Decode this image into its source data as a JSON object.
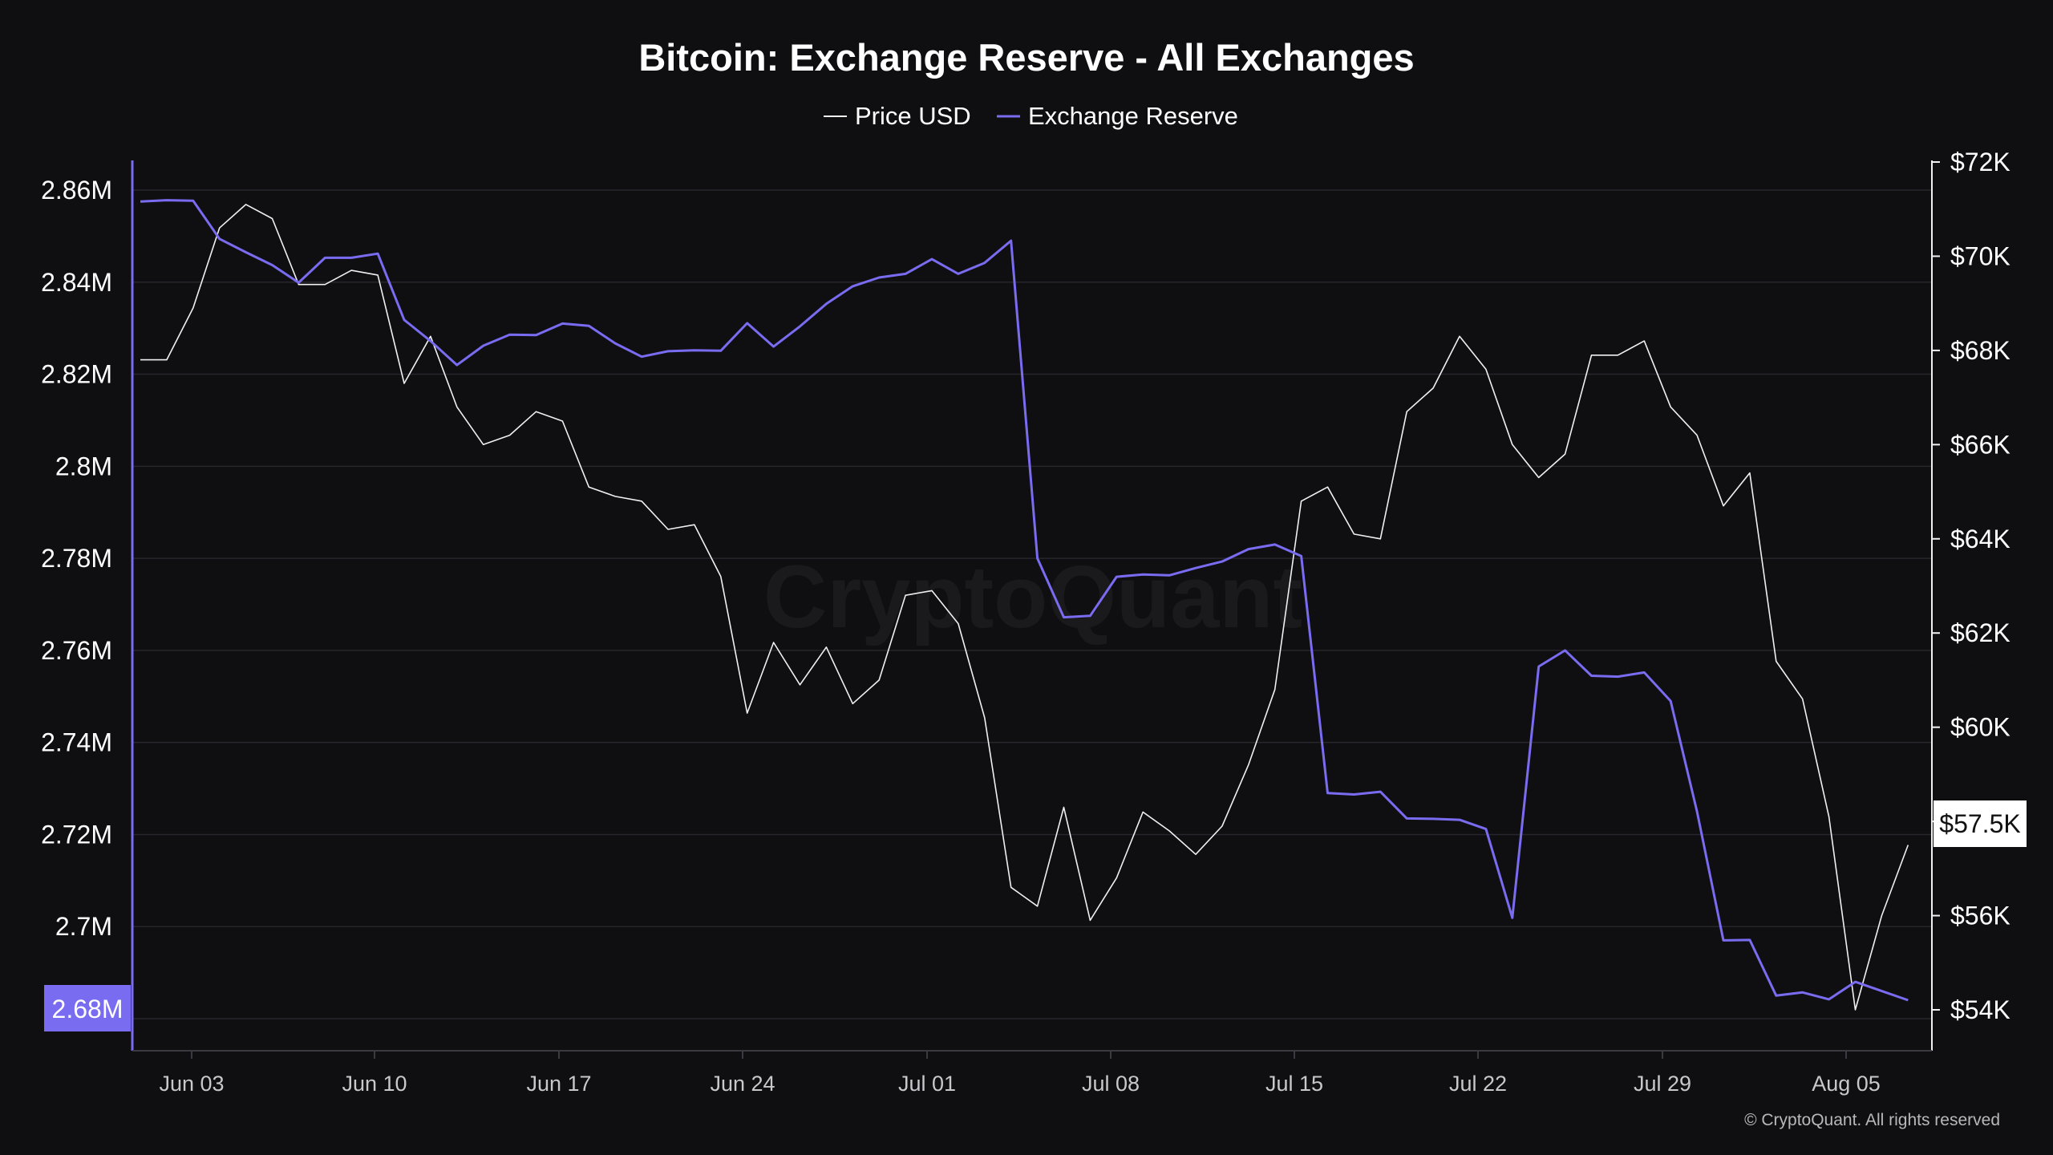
{
  "colors": {
    "background": "#0f0f12",
    "price": "#f0f0f0",
    "reserve": "#7a6cf0",
    "grid": "#26262c"
  },
  "chart_data": {
    "type": "line",
    "title": "Bitcoin: Exchange Reserve - All Exchanges",
    "legend": [
      "Price USD",
      "Exchange Reserve"
    ],
    "legend_position": "top-center",
    "grid": true,
    "x_ticks": [
      "Jun 03",
      "Jun 10",
      "Jun 17",
      "Jun 24",
      "Jul 01",
      "Jul 08",
      "Jul 15",
      "Jul 22",
      "Jul 29",
      "Aug 05"
    ],
    "y_left": {
      "label": "",
      "ticks": [
        "2.86M",
        "2.84M",
        "2.82M",
        "2.8M",
        "2.78M",
        "2.76M",
        "2.74M",
        "2.72M",
        "2.7M"
      ],
      "range": [
        2.68,
        2.86
      ],
      "current_label": "2.68M"
    },
    "y_right": {
      "label": "",
      "ticks": [
        "$72K",
        "$70K",
        "$68K",
        "$66K",
        "$64K",
        "$62K",
        "$60K",
        "$58K",
        "$56K",
        "$54K"
      ],
      "range": [
        54,
        72
      ],
      "current_label": "$57.5K"
    },
    "x": [
      "2024-06-01",
      "2024-06-02",
      "2024-06-03",
      "2024-06-04",
      "2024-06-05",
      "2024-06-06",
      "2024-06-07",
      "2024-06-08",
      "2024-06-09",
      "2024-06-10",
      "2024-06-11",
      "2024-06-12",
      "2024-06-13",
      "2024-06-14",
      "2024-06-15",
      "2024-06-16",
      "2024-06-17",
      "2024-06-18",
      "2024-06-19",
      "2024-06-20",
      "2024-06-21",
      "2024-06-22",
      "2024-06-23",
      "2024-06-24",
      "2024-06-25",
      "2024-06-26",
      "2024-06-27",
      "2024-06-28",
      "2024-06-29",
      "2024-06-30",
      "2024-07-01",
      "2024-07-02",
      "2024-07-03",
      "2024-07-04",
      "2024-07-05",
      "2024-07-06",
      "2024-07-07",
      "2024-07-08",
      "2024-07-09",
      "2024-07-10",
      "2024-07-11",
      "2024-07-12",
      "2024-07-13",
      "2024-07-14",
      "2024-07-15",
      "2024-07-16",
      "2024-07-17",
      "2024-07-18",
      "2024-07-19",
      "2024-07-20",
      "2024-07-21",
      "2024-07-22",
      "2024-07-23",
      "2024-07-24",
      "2024-07-25",
      "2024-07-26",
      "2024-07-27",
      "2024-07-28",
      "2024-07-29",
      "2024-07-30",
      "2024-07-31",
      "2024-08-01",
      "2024-08-02",
      "2024-08-03",
      "2024-08-04",
      "2024-08-05",
      "2024-08-06",
      "2024-08-07"
    ],
    "series": [
      {
        "name": "Price USD",
        "axis": "right",
        "color": "#f0f0f0",
        "values": [
          67.8,
          67.8,
          68.9,
          70.6,
          71.1,
          70.8,
          69.4,
          69.4,
          69.7,
          69.6,
          67.3,
          68.3,
          66.8,
          66.0,
          66.2,
          66.7,
          66.5,
          65.1,
          64.9,
          64.8,
          64.2,
          64.3,
          63.2,
          60.3,
          61.8,
          60.9,
          61.7,
          60.5,
          61.0,
          62.8,
          62.9,
          62.2,
          60.2,
          56.6,
          56.2,
          58.3,
          55.9,
          56.8,
          58.2,
          57.8,
          57.3,
          57.9,
          59.2,
          60.8,
          64.8,
          65.1,
          64.1,
          64.0,
          66.7,
          67.2,
          68.3,
          67.6,
          66.0,
          65.3,
          65.8,
          67.9,
          67.9,
          68.2,
          66.8,
          66.2,
          64.7,
          65.4,
          61.4,
          60.6,
          58.1,
          54.0,
          56.0,
          57.5
        ]
      },
      {
        "name": "Exchange Reserve",
        "axis": "left",
        "color": "#7a6cf0",
        "values": [
          2.8575,
          2.8578,
          2.8577,
          2.8494,
          2.8465,
          2.8437,
          2.8399,
          2.8453,
          2.8453,
          2.8462,
          2.8318,
          2.8272,
          2.822,
          2.8262,
          2.8286,
          2.8285,
          2.831,
          2.8305,
          2.8267,
          2.8238,
          2.825,
          2.8252,
          2.8251,
          2.8311,
          2.826,
          2.8304,
          2.8353,
          2.8391,
          2.841,
          2.8418,
          2.845,
          2.8418,
          2.8442,
          2.849,
          2.78,
          2.7672,
          2.7675,
          2.776,
          2.7765,
          2.7763,
          2.7779,
          2.7793,
          2.782,
          2.783,
          2.7805,
          2.729,
          2.7287,
          2.7293,
          2.7235,
          2.7234,
          2.7232,
          2.7212,
          2.7019,
          2.7565,
          2.76,
          2.7545,
          2.7543,
          2.7552,
          2.749,
          2.725,
          2.697,
          2.6971,
          2.685,
          2.6857,
          2.6842,
          2.688,
          2.686,
          2.684
        ]
      }
    ]
  },
  "watermark": "CryptoQuant",
  "footer": "© CryptoQuant. All rights reserved"
}
